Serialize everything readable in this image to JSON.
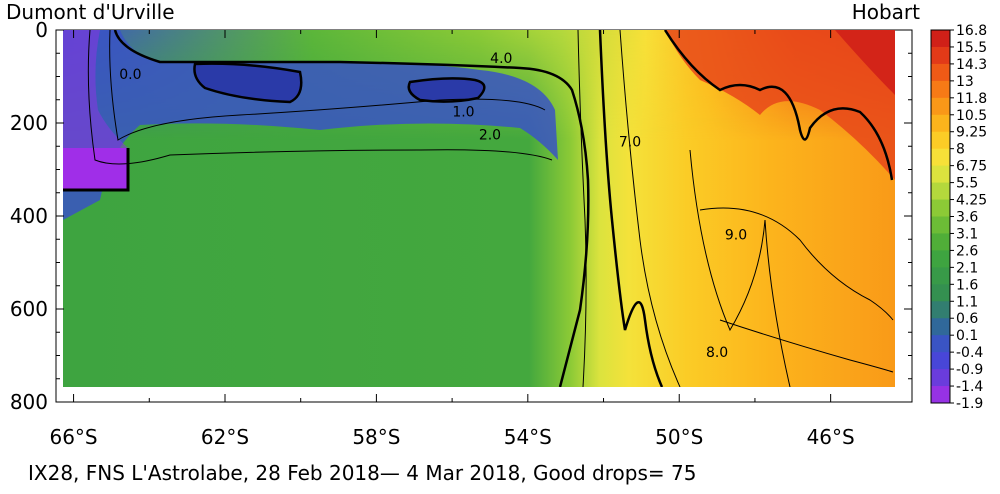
{
  "chart_data": {
    "type": "heatmap",
    "title": "",
    "left_label": "Dumont d'Urville",
    "right_label": "Hobart",
    "caption": "IX28, FNS L'Astrolabe, 28 Feb 2018— 4 Mar 2018, Good drops= 75",
    "xlabel": "",
    "ylabel": "",
    "x_ticks": [
      "66°S",
      "62°S",
      "58°S",
      "54°S",
      "50°S",
      "46°S"
    ],
    "x_tick_values": [
      66,
      62,
      58,
      54,
      50,
      46
    ],
    "xlim": [
      66.2,
      44.3
    ],
    "y_ticks": [
      "0",
      "200",
      "400",
      "600",
      "800"
    ],
    "y_tick_values": [
      0,
      200,
      400,
      600,
      800
    ],
    "ylim": [
      0,
      800
    ],
    "colorbar_labels": [
      "16.8",
      "15.5",
      "14.3",
      "13",
      "11.8",
      "10.5",
      "9.25",
      "8",
      "6.75",
      "5.5",
      "4.25",
      "3.6",
      "3.1",
      "2.6",
      "2.1",
      "1.6",
      "1.1",
      "0.6",
      "0.1",
      "-0.4",
      "-0.9",
      "-1.4",
      "-1.9"
    ],
    "colorbar_colors": [
      "#d02018",
      "#e23a18",
      "#ef5a16",
      "#f77a16",
      "#fa9818",
      "#fcb41c",
      "#fbcc26",
      "#f7e038",
      "#dbe33e",
      "#b4d83c",
      "#8cca36",
      "#6cbc36",
      "#50ae38",
      "#3ea440",
      "#389a48",
      "#349050",
      "#327e70",
      "#30689a",
      "#3a54c4",
      "#4846d8",
      "#6a3cdc",
      "#9632e4",
      "#c02cf0"
    ],
    "contour_labels": [
      {
        "text": "0.0",
        "x": 64.5,
        "y": 95
      },
      {
        "text": "4.0",
        "x": 54.7,
        "y": 60
      },
      {
        "text": "1.0",
        "x": 55.7,
        "y": 175
      },
      {
        "text": "2.0",
        "x": 55.0,
        "y": 225
      },
      {
        "text": "7.0",
        "x": 51.3,
        "y": 240
      },
      {
        "text": "9.0",
        "x": 48.5,
        "y": 440
      },
      {
        "text": "8.0",
        "x": 49.0,
        "y": 692
      }
    ]
  }
}
